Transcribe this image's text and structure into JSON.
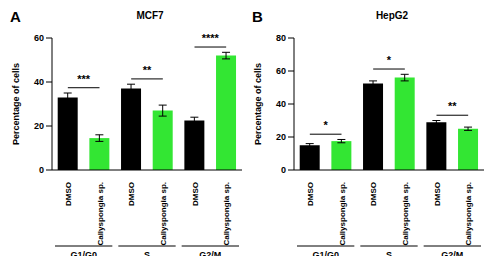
{
  "chart_data": [
    {
      "type": "bar",
      "panel": "A",
      "title": "MCF7",
      "y_label": "Percentage of cells",
      "categories": [
        "DMSO",
        "Callyspongia sp.",
        "DMSO",
        "Callyspongia sp.",
        "DMSO",
        "Callyspongia sp."
      ],
      "groups": [
        "G1/G0",
        "S",
        "G2/M"
      ],
      "values": [
        33,
        14.5,
        37,
        27,
        22.5,
        52
      ],
      "errors": [
        2,
        1.5,
        2,
        2.5,
        1.5,
        1.5
      ],
      "colors": [
        "#000000",
        "#33e633",
        "#000000",
        "#33e633",
        "#000000",
        "#33e633"
      ],
      "significance": [
        "***",
        "**",
        "****"
      ],
      "ylim": [
        0,
        60
      ],
      "yticks": [
        0,
        20,
        40,
        60
      ]
    },
    {
      "type": "bar",
      "panel": "B",
      "title": "HepG2",
      "y_label": "Percentage of cells",
      "categories": [
        "DMSO",
        "Callyspongia sp.",
        "DMSO",
        "Callyspongia sp.",
        "DMSO",
        "Callyspongia sp."
      ],
      "groups": [
        "G1/G0",
        "S",
        "G2/M"
      ],
      "values": [
        15,
        17.5,
        52.5,
        56,
        29,
        25
      ],
      "errors": [
        1,
        1,
        1.5,
        2,
        1,
        1
      ],
      "colors": [
        "#000000",
        "#33e633",
        "#000000",
        "#33e633",
        "#000000",
        "#33e633"
      ],
      "significance": [
        "*",
        "*",
        "**"
      ],
      "ylim": [
        0,
        80
      ],
      "yticks": [
        0,
        20,
        40,
        60,
        80
      ]
    }
  ]
}
